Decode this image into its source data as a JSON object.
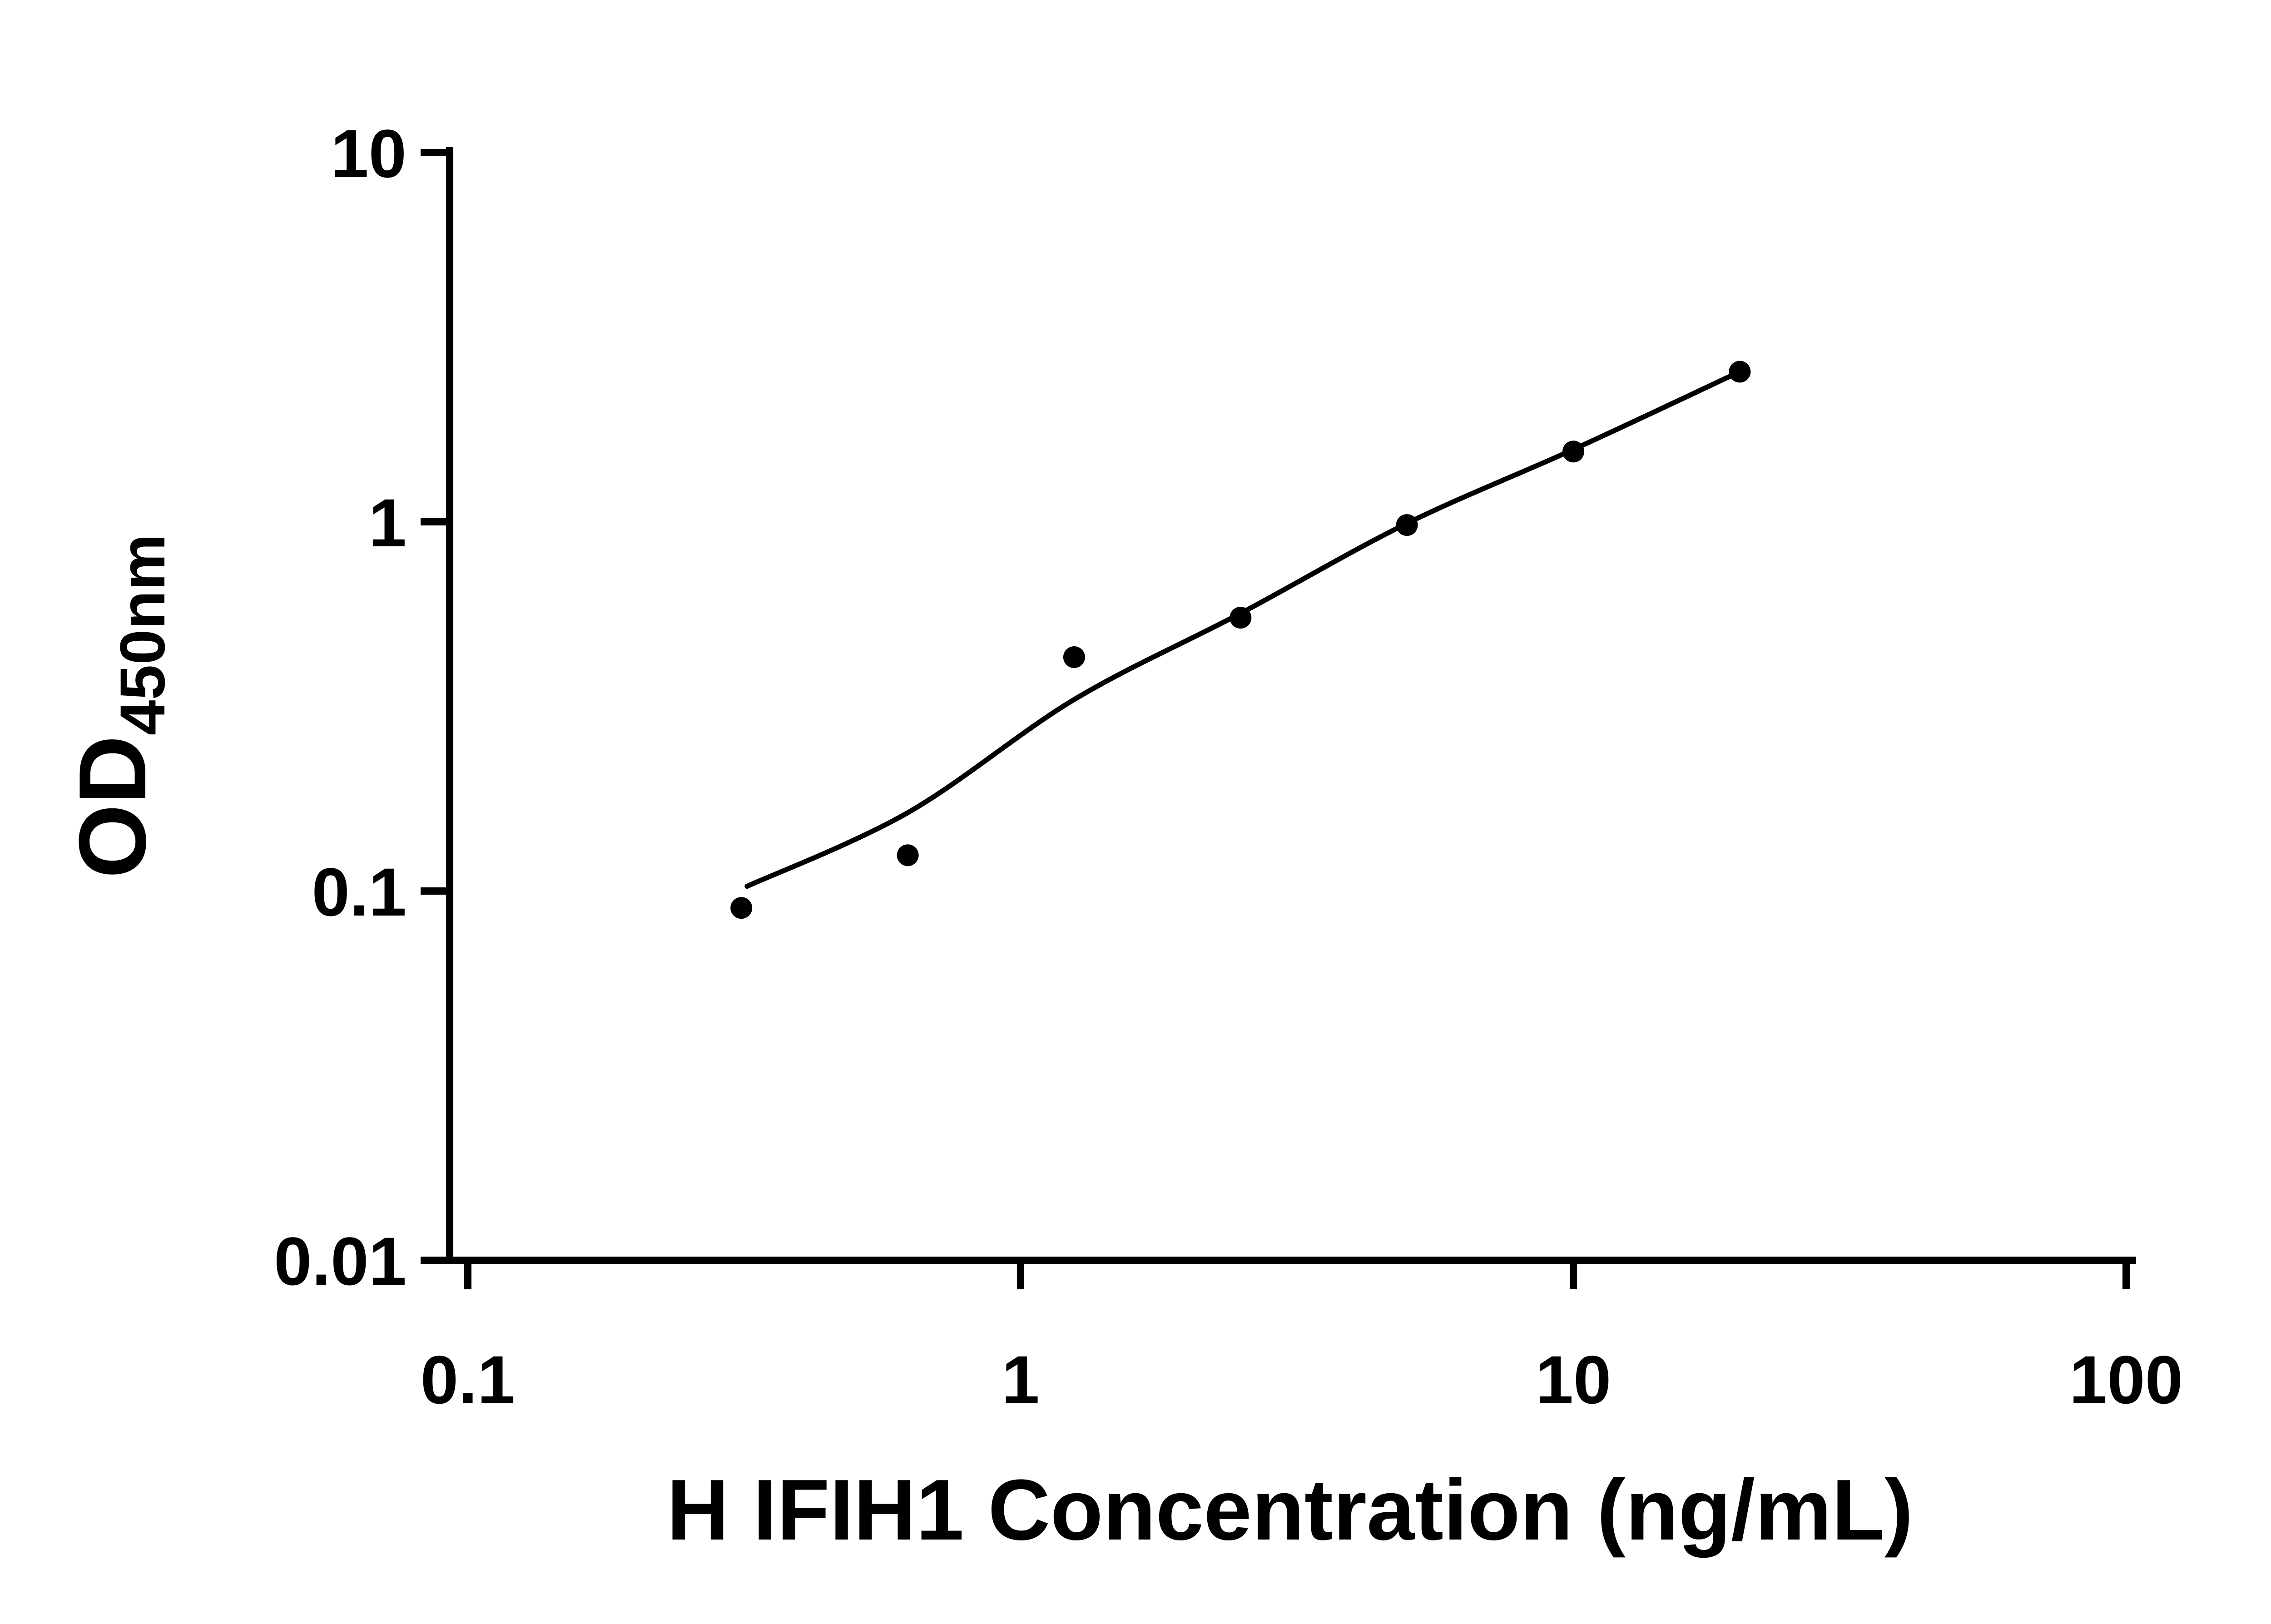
{
  "page": {
    "background": "#ffffff"
  },
  "chart_data": {
    "type": "scatter",
    "title": "",
    "xlabel": "H IFIH1 Concentration (ng/mL)",
    "ylabel_main": "OD",
    "ylabel_sub": "450nm",
    "x_scale": "log",
    "y_scale": "log",
    "xlim": [
      0.1,
      100
    ],
    "ylim": [
      0.01,
      10
    ],
    "grid": false,
    "legend": null,
    "marker_color": "#000000",
    "line_color": "#000000",
    "x_ticks": [
      {
        "value": 0.1,
        "label": "0.1"
      },
      {
        "value": 1,
        "label": "1"
      },
      {
        "value": 10,
        "label": "10"
      },
      {
        "value": 100,
        "label": "100"
      }
    ],
    "y_ticks": [
      {
        "value": 0.01,
        "label": "0.01"
      },
      {
        "value": 0.1,
        "label": "0.1"
      },
      {
        "value": 1,
        "label": "1"
      },
      {
        "value": 10,
        "label": "10"
      }
    ],
    "points": [
      {
        "x": 0.3125,
        "y": 0.09
      },
      {
        "x": 0.625,
        "y": 0.125
      },
      {
        "x": 1.25,
        "y": 0.43
      },
      {
        "x": 2.5,
        "y": 0.55
      },
      {
        "x": 5,
        "y": 0.98
      },
      {
        "x": 10,
        "y": 1.55
      },
      {
        "x": 20,
        "y": 2.55
      }
    ],
    "fit_curve": [
      {
        "x": 0.32,
        "y": 0.103
      },
      {
        "x": 0.625,
        "y": 0.163
      },
      {
        "x": 1.25,
        "y": 0.33
      },
      {
        "x": 2.5,
        "y": 0.565
      },
      {
        "x": 5,
        "y": 0.99
      },
      {
        "x": 10,
        "y": 1.57
      },
      {
        "x": 20,
        "y": 2.55
      }
    ]
  }
}
